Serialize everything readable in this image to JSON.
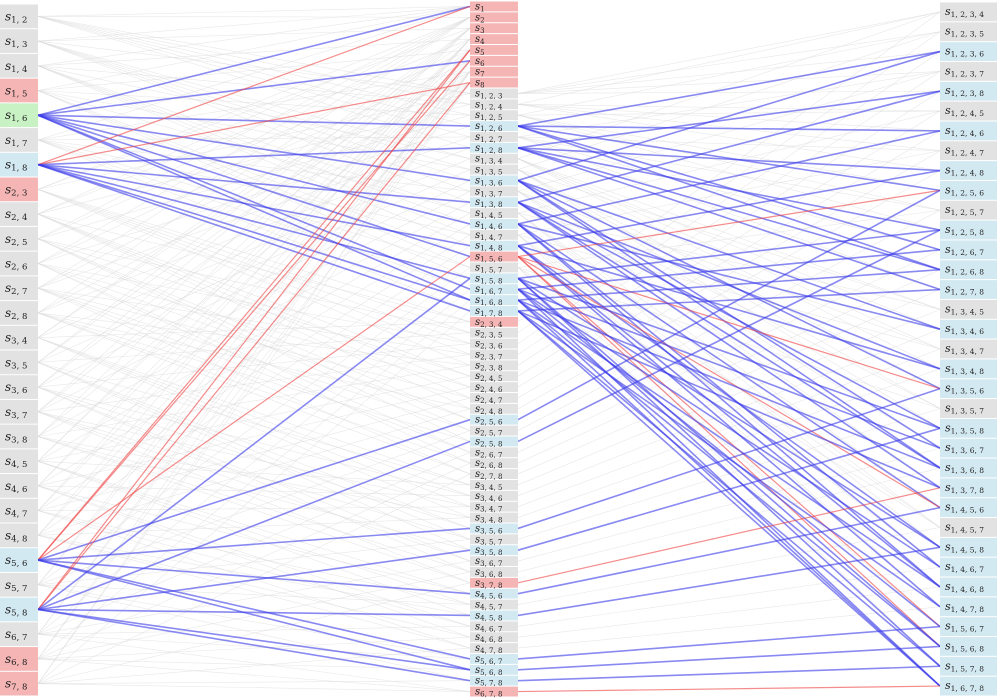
{
  "symbol": "s",
  "state_colors": {
    "gray": "#e2e2e2",
    "red": "#f5b5b5",
    "blue": "#d3e9f2",
    "green": "#c9f2c4"
  },
  "edge_colors": {
    "gray": "#d8d8d8",
    "blue": "#3b3bea",
    "red": "#ee4040"
  },
  "left": [
    {
      "sub": "1, 2",
      "state": "gray"
    },
    {
      "sub": "1, 3",
      "state": "gray"
    },
    {
      "sub": "1, 4",
      "state": "gray"
    },
    {
      "sub": "1, 5",
      "state": "red"
    },
    {
      "sub": "1, 6",
      "state": "green"
    },
    {
      "sub": "1, 7",
      "state": "gray"
    },
    {
      "sub": "1, 8",
      "state": "blue"
    },
    {
      "sub": "2, 3",
      "state": "red"
    },
    {
      "sub": "2, 4",
      "state": "gray"
    },
    {
      "sub": "2, 5",
      "state": "gray"
    },
    {
      "sub": "2, 6",
      "state": "gray"
    },
    {
      "sub": "2, 7",
      "state": "gray"
    },
    {
      "sub": "2, 8",
      "state": "gray"
    },
    {
      "sub": "3, 4",
      "state": "gray"
    },
    {
      "sub": "3, 5",
      "state": "gray"
    },
    {
      "sub": "3, 6",
      "state": "gray"
    },
    {
      "sub": "3, 7",
      "state": "gray"
    },
    {
      "sub": "3, 8",
      "state": "gray"
    },
    {
      "sub": "4, 5",
      "state": "gray"
    },
    {
      "sub": "4, 6",
      "state": "gray"
    },
    {
      "sub": "4, 7",
      "state": "gray"
    },
    {
      "sub": "4, 8",
      "state": "gray"
    },
    {
      "sub": "5, 6",
      "state": "blue"
    },
    {
      "sub": "5, 7",
      "state": "gray"
    },
    {
      "sub": "5, 8",
      "state": "blue"
    },
    {
      "sub": "6, 7",
      "state": "gray"
    },
    {
      "sub": "6, 8",
      "state": "red"
    },
    {
      "sub": "7, 8",
      "state": "red"
    }
  ],
  "middle": [
    {
      "sub": "1",
      "state": "red"
    },
    {
      "sub": "2",
      "state": "red"
    },
    {
      "sub": "3",
      "state": "red"
    },
    {
      "sub": "4",
      "state": "red"
    },
    {
      "sub": "5",
      "state": "red"
    },
    {
      "sub": "6",
      "state": "red"
    },
    {
      "sub": "7",
      "state": "red"
    },
    {
      "sub": "8",
      "state": "red"
    },
    {
      "sub": "1, 2, 3",
      "state": "gray"
    },
    {
      "sub": "1, 2, 4",
      "state": "gray"
    },
    {
      "sub": "1, 2, 5",
      "state": "gray"
    },
    {
      "sub": "1, 2, 6",
      "state": "blue"
    },
    {
      "sub": "1, 2, 7",
      "state": "gray"
    },
    {
      "sub": "1, 2, 8",
      "state": "blue"
    },
    {
      "sub": "1, 3, 4",
      "state": "gray"
    },
    {
      "sub": "1, 3, 5",
      "state": "gray"
    },
    {
      "sub": "1, 3, 6",
      "state": "blue"
    },
    {
      "sub": "1, 3, 7",
      "state": "gray"
    },
    {
      "sub": "1, 3, 8",
      "state": "blue"
    },
    {
      "sub": "1, 4, 5",
      "state": "gray"
    },
    {
      "sub": "1, 4, 6",
      "state": "blue"
    },
    {
      "sub": "1, 4, 7",
      "state": "gray"
    },
    {
      "sub": "1, 4, 8",
      "state": "blue"
    },
    {
      "sub": "1, 5, 6",
      "state": "red"
    },
    {
      "sub": "1, 5, 7",
      "state": "gray"
    },
    {
      "sub": "1, 5, 8",
      "state": "blue"
    },
    {
      "sub": "1, 6, 7",
      "state": "blue"
    },
    {
      "sub": "1, 6, 8",
      "state": "blue"
    },
    {
      "sub": "1, 7, 8",
      "state": "blue"
    },
    {
      "sub": "2, 3, 4",
      "state": "red"
    },
    {
      "sub": "2, 3, 5",
      "state": "gray"
    },
    {
      "sub": "2, 3, 6",
      "state": "gray"
    },
    {
      "sub": "2, 3, 7",
      "state": "gray"
    },
    {
      "sub": "2, 3, 8",
      "state": "gray"
    },
    {
      "sub": "2, 4, 5",
      "state": "gray"
    },
    {
      "sub": "2, 4, 6",
      "state": "gray"
    },
    {
      "sub": "2, 4, 7",
      "state": "gray"
    },
    {
      "sub": "2, 4, 8",
      "state": "gray"
    },
    {
      "sub": "2, 5, 6",
      "state": "blue"
    },
    {
      "sub": "2, 5, 7",
      "state": "gray"
    },
    {
      "sub": "2, 5, 8",
      "state": "blue"
    },
    {
      "sub": "2, 6, 7",
      "state": "gray"
    },
    {
      "sub": "2, 6, 8",
      "state": "gray"
    },
    {
      "sub": "2, 7, 8",
      "state": "gray"
    },
    {
      "sub": "3, 4, 5",
      "state": "gray"
    },
    {
      "sub": "3, 4, 6",
      "state": "gray"
    },
    {
      "sub": "3, 4, 7",
      "state": "gray"
    },
    {
      "sub": "3, 4, 8",
      "state": "gray"
    },
    {
      "sub": "3, 5, 6",
      "state": "blue"
    },
    {
      "sub": "3, 5, 7",
      "state": "gray"
    },
    {
      "sub": "3, 5, 8",
      "state": "blue"
    },
    {
      "sub": "3, 6, 7",
      "state": "gray"
    },
    {
      "sub": "3, 6, 8",
      "state": "gray"
    },
    {
      "sub": "3, 7, 8",
      "state": "red"
    },
    {
      "sub": "4, 5, 6",
      "state": "blue"
    },
    {
      "sub": "4, 5, 7",
      "state": "gray"
    },
    {
      "sub": "4, 5, 8",
      "state": "blue"
    },
    {
      "sub": "4, 6, 7",
      "state": "gray"
    },
    {
      "sub": "4, 6, 8",
      "state": "gray"
    },
    {
      "sub": "4, 7, 8",
      "state": "gray"
    },
    {
      "sub": "5, 6, 7",
      "state": "blue"
    },
    {
      "sub": "5, 6, 8",
      "state": "blue"
    },
    {
      "sub": "5, 7, 8",
      "state": "blue"
    },
    {
      "sub": "6, 7, 8",
      "state": "red"
    }
  ],
  "right": [
    {
      "sub": "1, 2, 3, 4",
      "state": "gray"
    },
    {
      "sub": "1, 2, 3, 5",
      "state": "gray"
    },
    {
      "sub": "1, 2, 3, 6",
      "state": "blue"
    },
    {
      "sub": "1, 2, 3, 7",
      "state": "gray"
    },
    {
      "sub": "1, 2, 3, 8",
      "state": "blue"
    },
    {
      "sub": "1, 2, 4, 5",
      "state": "gray"
    },
    {
      "sub": "1, 2, 4, 6",
      "state": "blue"
    },
    {
      "sub": "1, 2, 4, 7",
      "state": "gray"
    },
    {
      "sub": "1, 2, 4, 8",
      "state": "blue"
    },
    {
      "sub": "1, 2, 5, 6",
      "state": "blue"
    },
    {
      "sub": "1, 2, 5, 7",
      "state": "gray"
    },
    {
      "sub": "1, 2, 5, 8",
      "state": "blue"
    },
    {
      "sub": "1, 2, 6, 7",
      "state": "blue"
    },
    {
      "sub": "1, 2, 6, 8",
      "state": "blue"
    },
    {
      "sub": "1, 2, 7, 8",
      "state": "blue"
    },
    {
      "sub": "1, 3, 4, 5",
      "state": "gray"
    },
    {
      "sub": "1, 3, 4, 6",
      "state": "blue"
    },
    {
      "sub": "1, 3, 4, 7",
      "state": "gray"
    },
    {
      "sub": "1, 3, 4, 8",
      "state": "blue"
    },
    {
      "sub": "1, 3, 5, 6",
      "state": "blue"
    },
    {
      "sub": "1, 3, 5, 7",
      "state": "gray"
    },
    {
      "sub": "1, 3, 5, 8",
      "state": "blue"
    },
    {
      "sub": "1, 3, 6, 7",
      "state": "blue"
    },
    {
      "sub": "1, 3, 6, 8",
      "state": "blue"
    },
    {
      "sub": "1, 3, 7, 8",
      "state": "blue"
    },
    {
      "sub": "1, 4, 5, 6",
      "state": "blue"
    },
    {
      "sub": "1, 4, 5, 7",
      "state": "gray"
    },
    {
      "sub": "1, 4, 5, 8",
      "state": "blue"
    },
    {
      "sub": "1, 4, 6, 7",
      "state": "blue"
    },
    {
      "sub": "1, 4, 6, 8",
      "state": "blue"
    },
    {
      "sub": "1, 4, 7, 8",
      "state": "blue"
    },
    {
      "sub": "1, 5, 6, 7",
      "state": "blue"
    },
    {
      "sub": "1, 5, 6, 8",
      "state": "blue"
    },
    {
      "sub": "1, 5, 7, 8",
      "state": "blue"
    },
    {
      "sub": "1, 6, 7, 8",
      "state": "blue"
    }
  ]
}
